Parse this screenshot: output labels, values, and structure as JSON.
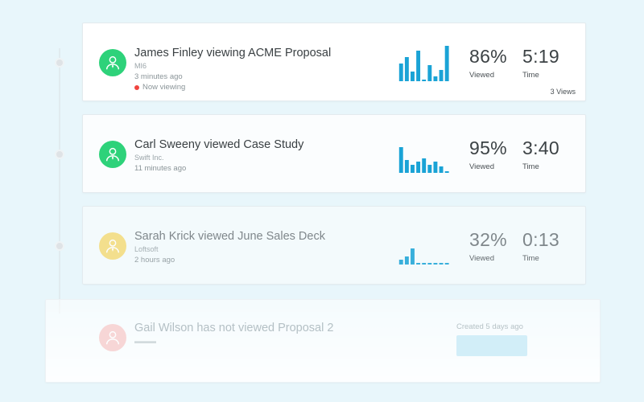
{
  "activities": [
    {
      "title": "James Finley viewing ACME Proposal",
      "company": "MI6",
      "time_ago": "3 minutes ago",
      "status": "Now viewing",
      "bars": [
        22,
        30,
        12,
        38,
        2,
        20,
        6,
        14,
        44
      ],
      "viewed_value": "86%",
      "viewed_label": "Viewed",
      "time_value": "5:19",
      "time_label": "Time",
      "views": "3 Views"
    },
    {
      "title": "Carl Sweeny viewed Case Study",
      "company": "Swift Inc.",
      "time_ago": "11 minutes ago",
      "bars": [
        32,
        16,
        10,
        14,
        18,
        10,
        14,
        8,
        2
      ],
      "viewed_value": "95%",
      "viewed_label": "Viewed",
      "time_value": "3:40",
      "time_label": "Time"
    },
    {
      "title": "Sarah Krick viewed June Sales Deck",
      "company": "Loftsoft",
      "time_ago": "2 hours ago",
      "bars": [
        6,
        10,
        20,
        2,
        2,
        2,
        2,
        2,
        2
      ],
      "viewed_value": "32%",
      "viewed_label": "Viewed",
      "time_value": "0:13",
      "time_label": "Time"
    }
  ],
  "pending": {
    "title": "Gail Wilson has not viewed Proposal 2",
    "created": "Created 5 days ago"
  },
  "colors": {
    "bar": "#1aa3d6",
    "avatar_active": "#2ed27a",
    "avatar_faded": "#f5dc7a",
    "now_viewing_dot": "#f0443f"
  },
  "icons": {
    "avatar": "person-icon"
  }
}
